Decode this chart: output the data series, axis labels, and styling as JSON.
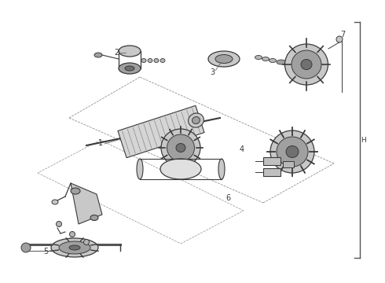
{
  "bg_color": "#ffffff",
  "line_color": "#3a3a3a",
  "light_gray": "#c8c8c8",
  "mid_gray": "#a0a0a0",
  "dark_gray": "#707070",
  "fig_w": 4.9,
  "fig_h": 3.6,
  "dpi": 100
}
